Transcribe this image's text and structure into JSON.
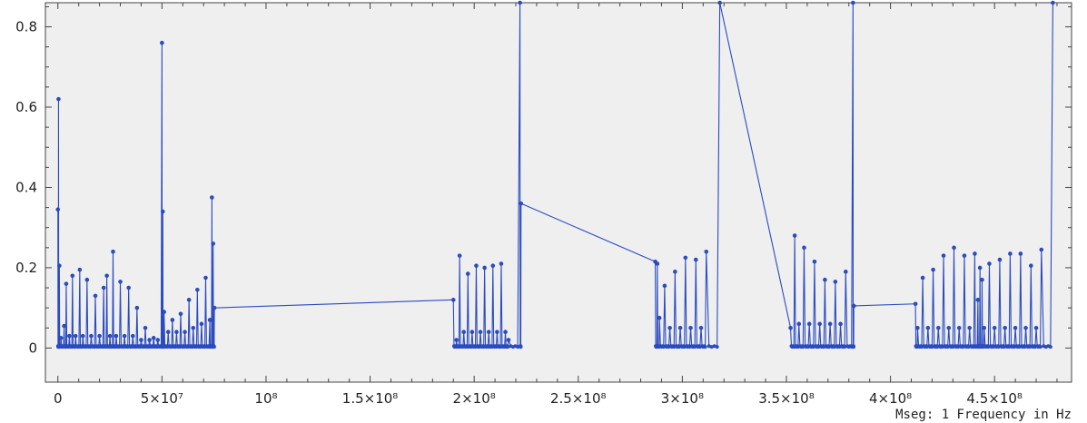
{
  "chart_data": {
    "type": "line",
    "title": "",
    "xlabel": "Mseg: 1 Frequency in Hz",
    "ylabel": "",
    "xlim": [
      -6000000,
      487000000
    ],
    "ylim": [
      -0.085,
      0.86
    ],
    "grid": false,
    "x_ticks": [
      {
        "value": 0,
        "label": "0"
      },
      {
        "value": 50000000,
        "label": "5×10⁷"
      },
      {
        "value": 100000000,
        "label": "10⁸"
      },
      {
        "value": 150000000,
        "label": "1.5×10⁸"
      },
      {
        "value": 200000000,
        "label": "2×10⁸"
      },
      {
        "value": 250000000,
        "label": "2.5×10⁸"
      },
      {
        "value": 300000000,
        "label": "3×10⁸"
      },
      {
        "value": 350000000,
        "label": "3.5×10⁸"
      },
      {
        "value": 400000000,
        "label": "4×10⁸"
      },
      {
        "value": 450000000,
        "label": "4.5×10⁸"
      }
    ],
    "y_ticks": [
      {
        "value": 0,
        "label": "0"
      },
      {
        "value": 0.2,
        "label": "0.2"
      },
      {
        "value": 0.4,
        "label": "0.4"
      },
      {
        "value": 0.6,
        "label": "0.6"
      },
      {
        "value": 0.8,
        "label": "0.8"
      }
    ],
    "colors": {
      "series": "#2b4bbf",
      "plot_bg": "#efefef",
      "frame": "#444444"
    },
    "series": [
      {
        "name": "",
        "clusters": [
          {
            "start": 0,
            "end": 95000000,
            "peaks": [
              [
                0,
                0.345
              ],
              [
                300000,
                0.62
              ],
              [
                700000,
                0.205
              ],
              [
                1500000,
                0.025
              ],
              [
                3000000,
                0.055
              ],
              [
                4000000,
                0.16
              ],
              [
                5500000,
                0.03
              ],
              [
                7000000,
                0.18
              ],
              [
                8500000,
                0.03
              ],
              [
                10500000,
                0.195
              ],
              [
                12000000,
                0.03
              ],
              [
                14000000,
                0.17
              ],
              [
                16000000,
                0.03
              ],
              [
                18000000,
                0.13
              ],
              [
                20000000,
                0.03
              ],
              [
                22000000,
                0.15
              ],
              [
                23500000,
                0.18
              ],
              [
                25000000,
                0.03
              ],
              [
                26500000,
                0.24
              ],
              [
                28000000,
                0.03
              ],
              [
                30000000,
                0.165
              ],
              [
                32000000,
                0.03
              ],
              [
                34000000,
                0.15
              ],
              [
                36000000,
                0.03
              ],
              [
                38000000,
                0.1
              ],
              [
                40000000,
                0.02
              ],
              [
                42000000,
                0.05
              ],
              [
                44000000,
                0.02
              ],
              [
                46000000,
                0.025
              ],
              [
                48000000,
                0.02
              ],
              [
                50000000,
                0.76
              ],
              [
                50400000,
                0.34
              ],
              [
                51000000,
                0.09
              ],
              [
                53000000,
                0.04
              ],
              [
                55000000,
                0.07
              ],
              [
                57000000,
                0.04
              ],
              [
                59000000,
                0.085
              ],
              [
                61000000,
                0.04
              ],
              [
                63000000,
                0.12
              ],
              [
                65000000,
                0.05
              ],
              [
                67000000,
                0.145
              ],
              [
                69000000,
                0.06
              ],
              [
                71000000,
                0.175
              ],
              [
                73000000,
                0.07
              ],
              [
                74000000,
                0.375
              ],
              [
                74600000,
                0.26
              ],
              [
                75200000,
                0.1
              ]
            ]
          },
          {
            "start": 190000000,
            "end": 222000000,
            "peaks": [
              [
                190000000,
                0.12
              ],
              [
                191500000,
                0.02
              ],
              [
                193000000,
                0.23
              ],
              [
                195000000,
                0.04
              ],
              [
                197000000,
                0.185
              ],
              [
                199000000,
                0.04
              ],
              [
                201000000,
                0.205
              ],
              [
                203000000,
                0.04
              ],
              [
                205000000,
                0.2
              ],
              [
                207000000,
                0.04
              ],
              [
                209000000,
                0.205
              ],
              [
                211000000,
                0.04
              ],
              [
                213000000,
                0.21
              ],
              [
                215000000,
                0.04
              ],
              [
                216500000,
                0.02
              ],
              [
                222000000,
                0.86
              ],
              [
                222500000,
                0.36
              ]
            ]
          },
          {
            "start": 287000000,
            "end": 318000000,
            "peaks": [
              [
                287000000,
                0.215
              ],
              [
                288000000,
                0.21
              ],
              [
                289000000,
                0.075
              ],
              [
                291500000,
                0.155
              ],
              [
                294000000,
                0.05
              ],
              [
                296500000,
                0.19
              ],
              [
                299000000,
                0.05
              ],
              [
                301500000,
                0.225
              ],
              [
                304000000,
                0.05
              ],
              [
                306500000,
                0.22
              ],
              [
                309000000,
                0.05
              ],
              [
                311500000,
                0.24
              ],
              [
                318000000,
                0.86
              ]
            ]
          },
          {
            "start": 352000000,
            "end": 382000000,
            "peaks": [
              [
                352000000,
                0.05
              ],
              [
                354000000,
                0.28
              ],
              [
                356000000,
                0.06
              ],
              [
                358500000,
                0.25
              ],
              [
                361000000,
                0.06
              ],
              [
                363500000,
                0.215
              ],
              [
                366000000,
                0.06
              ],
              [
                368500000,
                0.17
              ],
              [
                371000000,
                0.06
              ],
              [
                373500000,
                0.165
              ],
              [
                376000000,
                0.06
              ],
              [
                378500000,
                0.19
              ],
              [
                382000000,
                0.86
              ],
              [
                382400000,
                0.105
              ]
            ]
          },
          {
            "start": 412000000,
            "end": 478000000,
            "peaks": [
              [
                412000000,
                0.11
              ],
              [
                413000000,
                0.05
              ],
              [
                415500000,
                0.175
              ],
              [
                418000000,
                0.05
              ],
              [
                420500000,
                0.195
              ],
              [
                423000000,
                0.05
              ],
              [
                425500000,
                0.23
              ],
              [
                428000000,
                0.05
              ],
              [
                430500000,
                0.25
              ],
              [
                433000000,
                0.05
              ],
              [
                435500000,
                0.23
              ],
              [
                438000000,
                0.05
              ],
              [
                440500000,
                0.235
              ],
              [
                442000000,
                0.12
              ],
              [
                443000000,
                0.2
              ],
              [
                444000000,
                0.17
              ],
              [
                445000000,
                0.05
              ],
              [
                447500000,
                0.21
              ],
              [
                450000000,
                0.05
              ],
              [
                452500000,
                0.22
              ],
              [
                455000000,
                0.05
              ],
              [
                457500000,
                0.235
              ],
              [
                460000000,
                0.05
              ],
              [
                462500000,
                0.235
              ],
              [
                465000000,
                0.05
              ],
              [
                467500000,
                0.205
              ],
              [
                470000000,
                0.05
              ],
              [
                472500000,
                0.245
              ],
              [
                478000000,
                0.86
              ]
            ]
          }
        ],
        "connectors": [
          [
            [
              75200000,
              0.1
            ],
            [
              190000000,
              0.12
            ]
          ],
          [
            [
              222500000,
              0.36
            ],
            [
              287000000,
              0.215
            ]
          ],
          [
            [
              318000000,
              0.86
            ],
            [
              352000000,
              0.05
            ]
          ],
          [
            [
              382400000,
              0.105
            ],
            [
              412000000,
              0.11
            ]
          ]
        ]
      }
    ]
  }
}
